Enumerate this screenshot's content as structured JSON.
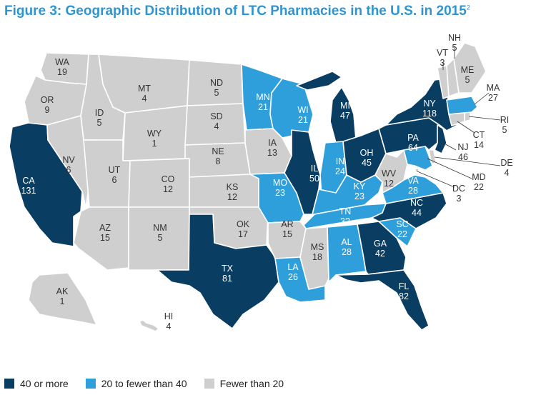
{
  "title": "Figure 3: Geographic Distribution of LTC Pharmacies in the U.S. in 2015",
  "title_footnote": "2",
  "colors": {
    "high": "#0a3d62",
    "mid": "#2f9fdc",
    "low": "#cfcfcf"
  },
  "legend": [
    {
      "label": "40 or more",
      "color": "#0a3d62"
    },
    {
      "label": "20 to fewer than 40",
      "color": "#2f9fdc"
    },
    {
      "label": "Fewer than 20",
      "color": "#cfcfcf"
    }
  ],
  "states": [
    {
      "abbr": "WA",
      "value": "19",
      "tier": "low"
    },
    {
      "abbr": "OR",
      "value": "9",
      "tier": "low"
    },
    {
      "abbr": "CA",
      "value": "131",
      "tier": "high"
    },
    {
      "abbr": "ID",
      "value": "5",
      "tier": "low"
    },
    {
      "abbr": "NV",
      "value": "6",
      "tier": "low"
    },
    {
      "abbr": "MT",
      "value": "4",
      "tier": "low"
    },
    {
      "abbr": "WY",
      "value": "1",
      "tier": "low"
    },
    {
      "abbr": "UT",
      "value": "6",
      "tier": "low"
    },
    {
      "abbr": "AZ",
      "value": "15",
      "tier": "low"
    },
    {
      "abbr": "CO",
      "value": "12",
      "tier": "low"
    },
    {
      "abbr": "NM",
      "value": "5",
      "tier": "low"
    },
    {
      "abbr": "ND",
      "value": "5",
      "tier": "low"
    },
    {
      "abbr": "SD",
      "value": "4",
      "tier": "low"
    },
    {
      "abbr": "NE",
      "value": "8",
      "tier": "low"
    },
    {
      "abbr": "KS",
      "value": "12",
      "tier": "low"
    },
    {
      "abbr": "OK",
      "value": "17",
      "tier": "low"
    },
    {
      "abbr": "TX",
      "value": "81",
      "tier": "high"
    },
    {
      "abbr": "MN",
      "value": "21",
      "tier": "mid"
    },
    {
      "abbr": "IA",
      "value": "13",
      "tier": "low"
    },
    {
      "abbr": "MO",
      "value": "23",
      "tier": "mid"
    },
    {
      "abbr": "AR",
      "value": "15",
      "tier": "low"
    },
    {
      "abbr": "LA",
      "value": "26",
      "tier": "mid"
    },
    {
      "abbr": "WI",
      "value": "21",
      "tier": "mid"
    },
    {
      "abbr": "IL",
      "value": "50",
      "tier": "high"
    },
    {
      "abbr": "MS",
      "value": "18",
      "tier": "low"
    },
    {
      "abbr": "MI",
      "value": "47",
      "tier": "high"
    },
    {
      "abbr": "IN",
      "value": "24",
      "tier": "mid"
    },
    {
      "abbr": "KY",
      "value": "23",
      "tier": "mid"
    },
    {
      "abbr": "TN",
      "value": "32",
      "tier": "mid"
    },
    {
      "abbr": "AL",
      "value": "28",
      "tier": "mid"
    },
    {
      "abbr": "OH",
      "value": "45",
      "tier": "high"
    },
    {
      "abbr": "GA",
      "value": "42",
      "tier": "high"
    },
    {
      "abbr": "FL",
      "value": "82",
      "tier": "high"
    },
    {
      "abbr": "SC",
      "value": "22",
      "tier": "mid"
    },
    {
      "abbr": "NC",
      "value": "44",
      "tier": "high"
    },
    {
      "abbr": "VA",
      "value": "28",
      "tier": "mid"
    },
    {
      "abbr": "WV",
      "value": "12",
      "tier": "low"
    },
    {
      "abbr": "PA",
      "value": "64",
      "tier": "high"
    },
    {
      "abbr": "NY",
      "value": "118",
      "tier": "high"
    },
    {
      "abbr": "NJ",
      "value": "46",
      "tier": "high"
    },
    {
      "abbr": "DE",
      "value": "4",
      "tier": "low"
    },
    {
      "abbr": "MD",
      "value": "22",
      "tier": "mid"
    },
    {
      "abbr": "DC",
      "value": "3",
      "tier": "low"
    },
    {
      "abbr": "CT",
      "value": "14",
      "tier": "low"
    },
    {
      "abbr": "RI",
      "value": "5",
      "tier": "low"
    },
    {
      "abbr": "MA",
      "value": "27",
      "tier": "mid"
    },
    {
      "abbr": "VT",
      "value": "3",
      "tier": "low"
    },
    {
      "abbr": "NH",
      "value": "5",
      "tier": "low"
    },
    {
      "abbr": "ME",
      "value": "5",
      "tier": "low"
    },
    {
      "abbr": "AK",
      "value": "1",
      "tier": "low"
    },
    {
      "abbr": "HI",
      "value": "4",
      "tier": "low"
    }
  ]
}
